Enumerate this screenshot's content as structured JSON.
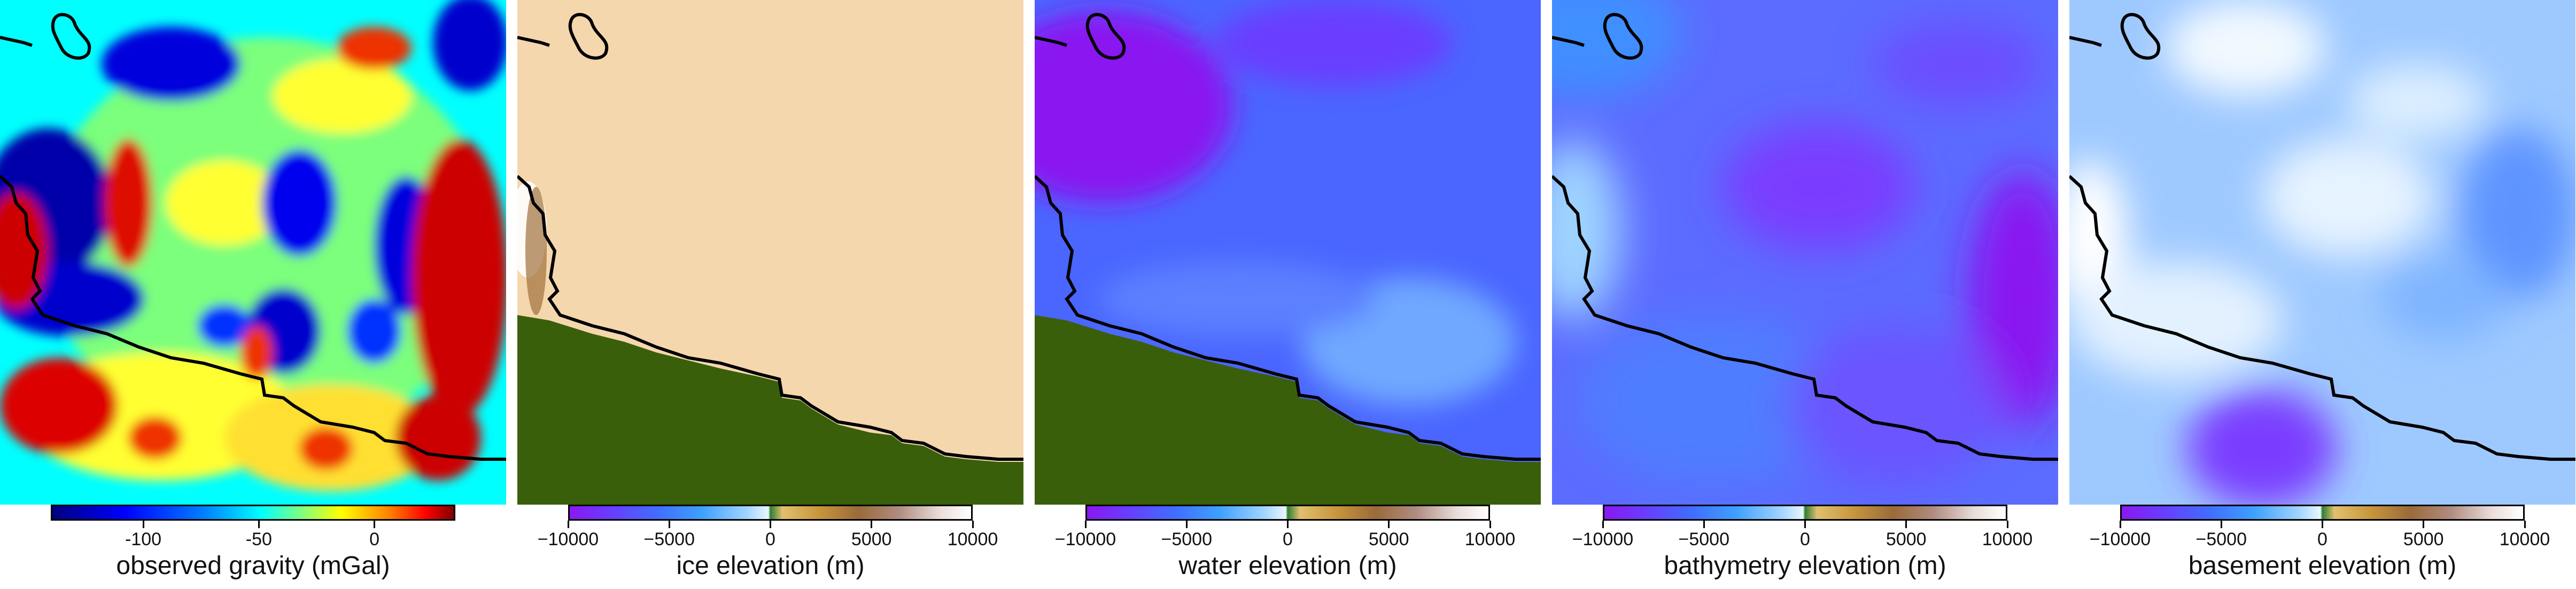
{
  "panels": [
    {
      "key": "gravity",
      "title": "observed gravity (mGal)",
      "ticks": [
        "-100",
        "-50",
        "0"
      ],
      "tick_values": [
        -100,
        -50,
        0
      ],
      "range": [
        -140,
        35
      ],
      "palette": "jet"
    },
    {
      "key": "ice",
      "title": "ice elevation (m)",
      "ticks": [
        "−10000",
        "−5000",
        "0",
        "5000",
        "10000"
      ],
      "tick_values": [
        -10000,
        -5000,
        0,
        5000,
        10000
      ],
      "range": [
        -10000,
        10000
      ],
      "palette": "topo"
    },
    {
      "key": "water",
      "title": "water elevation (m)",
      "ticks": [
        "−10000",
        "−5000",
        "0",
        "5000",
        "10000"
      ],
      "tick_values": [
        -10000,
        -5000,
        0,
        5000,
        10000
      ],
      "range": [
        -10000,
        10000
      ],
      "palette": "topo"
    },
    {
      "key": "bathymetry",
      "title": "bathymetry elevation (m)",
      "ticks": [
        "−10000",
        "−5000",
        "0",
        "5000",
        "10000"
      ],
      "tick_values": [
        -10000,
        -5000,
        0,
        5000,
        10000
      ],
      "range": [
        -10000,
        10000
      ],
      "palette": "topo"
    },
    {
      "key": "basement",
      "title": "basement elevation (m)",
      "ticks": [
        "−10000",
        "−5000",
        "0",
        "5000",
        "10000"
      ],
      "tick_values": [
        -10000,
        -5000,
        0,
        5000,
        10000
      ],
      "range": [
        -10000,
        10000
      ],
      "palette": "topo"
    }
  ],
  "colors": {
    "land_green": "#3a5f0b",
    "ice_tan": "#f5d7ad",
    "coastline": "#000000"
  }
}
